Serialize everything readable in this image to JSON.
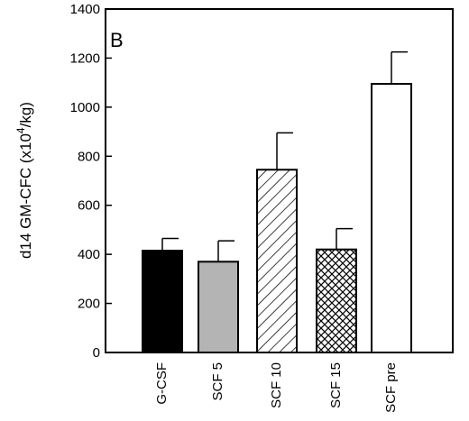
{
  "chart_data": {
    "type": "bar",
    "panel_label": "B",
    "ylabel": {
      "main": "d14 GM-CFC (x10",
      "sup": "4",
      "tail": "/kg)"
    },
    "ylim": [
      0,
      1400
    ],
    "yticks": [
      0,
      200,
      400,
      600,
      800,
      1000,
      1200,
      1400
    ],
    "categories": [
      "G-CSF",
      "SCF 5",
      "SCF 10",
      "SCF 15",
      "SCF pre"
    ],
    "values": [
      415,
      370,
      745,
      420,
      1095
    ],
    "errors": [
      50,
      85,
      150,
      85,
      130
    ],
    "fills": [
      "solid-black",
      "solid-gray",
      "diagonal-hatch",
      "crosshatch",
      "white"
    ],
    "colors": {
      "black": "#000000",
      "gray": "#b4b4b4",
      "white": "#ffffff"
    },
    "grid": false,
    "legend": "none"
  }
}
